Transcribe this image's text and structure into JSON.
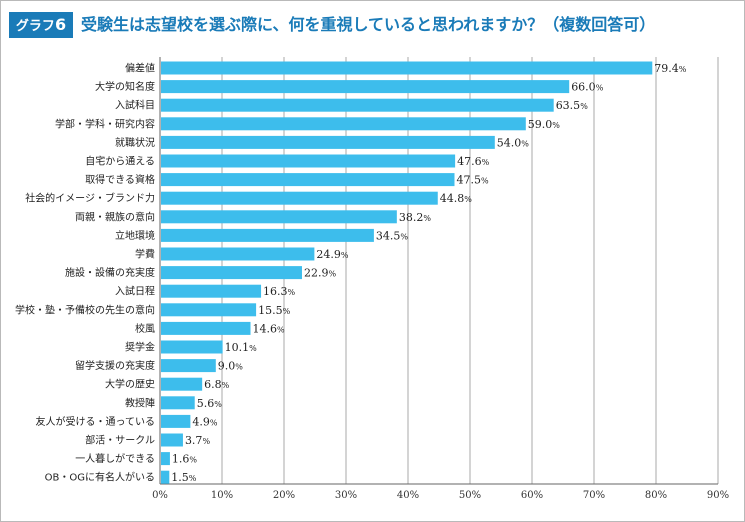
{
  "header": {
    "tag_prefix": "グラフ",
    "tag_number": "6",
    "title": "受験生は志望校を選ぶ際に、何を重視していると思われますか？（複数回答可）"
  },
  "chart_data": {
    "type": "bar",
    "orientation": "horizontal",
    "title": "受験生は志望校を選ぶ際に、何を重視していると思われますか？（複数回答可）",
    "xlabel": "",
    "ylabel": "",
    "xlim": [
      0,
      90
    ],
    "grid": true,
    "bar_color": "#3dbdec",
    "value_suffix": "%",
    "ticks": [
      "0%",
      "10%",
      "20%",
      "30%",
      "40%",
      "50%",
      "60%",
      "70%",
      "80%",
      "90%"
    ],
    "categories": [
      "偏差値",
      "大学の知名度",
      "入試科目",
      "学部・学科・研究内容",
      "就職状況",
      "自宅から通える",
      "取得できる資格",
      "社会的イメージ・ブランド力",
      "両親・親族の意向",
      "立地環境",
      "学費",
      "施設・設備の充実度",
      "入試日程",
      "学校・塾・予備校の先生の意向",
      "校風",
      "奨学金",
      "留学支援の充実度",
      "大学の歴史",
      "教授陣",
      "友人が受ける・通っている",
      "部活・サークル",
      "一人暮しができる",
      "OB・OGに有名人がいる"
    ],
    "values": [
      79.4,
      66.0,
      63.5,
      59.0,
      54.0,
      47.6,
      47.5,
      44.8,
      38.2,
      34.5,
      24.9,
      22.9,
      16.3,
      15.5,
      14.6,
      10.1,
      9.0,
      6.8,
      5.6,
      4.9,
      3.7,
      1.6,
      1.5
    ],
    "value_labels": [
      "79.4",
      "66.0",
      "63.5",
      "59.0",
      "54.0",
      "47.6",
      "47.5",
      "44.8",
      "38.2",
      "34.5",
      "24.9",
      "22.9",
      "16.3",
      "15.5",
      "14.6",
      "10.1",
      "9.0",
      "6.8",
      "5.6",
      "4.9",
      "3.7",
      "1.6",
      "1.5"
    ]
  }
}
